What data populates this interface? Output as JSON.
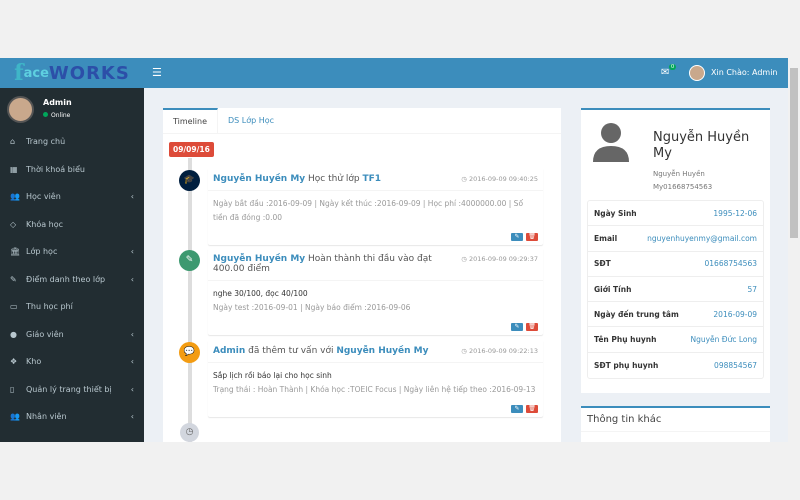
{
  "header": {
    "logo": {
      "f": "f",
      "ace": "ace",
      "works": "WORKS"
    },
    "menu_icon": "bars-icon",
    "mail_badge": "0",
    "greeting": "Xin Chào: Admin"
  },
  "sidebar": {
    "user": {
      "name": "Admin",
      "status": "Online"
    },
    "items": [
      {
        "icon": "home-icon",
        "glyph": "⌂",
        "label": "Trang chủ",
        "chevron": false
      },
      {
        "icon": "calendar-icon",
        "glyph": "▦",
        "label": "Thời khoá biểu",
        "chevron": false
      },
      {
        "icon": "users-icon",
        "glyph": "👥",
        "label": "Học viên",
        "chevron": true
      },
      {
        "icon": "diamond-icon",
        "glyph": "◇",
        "label": "Khóa học",
        "chevron": false
      },
      {
        "icon": "bank-icon",
        "glyph": "🏛",
        "label": "Lớp học",
        "chevron": true
      },
      {
        "icon": "edit-icon",
        "glyph": "✎",
        "label": "Điểm danh theo lớp",
        "chevron": true
      },
      {
        "icon": "money-icon",
        "glyph": "▭",
        "label": "Thu học phí",
        "chevron": false
      },
      {
        "icon": "user-icon",
        "glyph": "●",
        "label": "Giáo viên",
        "chevron": true
      },
      {
        "icon": "cubes-icon",
        "glyph": "❖",
        "label": "Kho",
        "chevron": true
      },
      {
        "icon": "tablet-icon",
        "glyph": "▯",
        "label": "Quản lý trang thiết bị",
        "chevron": true
      },
      {
        "icon": "users-icon",
        "glyph": "👥",
        "label": "Nhân viên",
        "chevron": true
      }
    ]
  },
  "tabs": [
    {
      "label": "Timeline",
      "active": true
    },
    {
      "label": "DS Lớp Học",
      "active": false
    }
  ],
  "timeline": {
    "date": "09/09/16",
    "items": [
      {
        "icon": "graduation-cap-icon",
        "color": "#001f3f",
        "who": "Nguyễn Huyền My",
        "action": " Học thử lớp ",
        "target": "TF1",
        "time": "2016-09-09 09:40:25",
        "text": "",
        "meta": "Ngày bắt đầu :2016-09-09 | Ngày kết thúc :2016-09-09 | Học phí :4000000.00 | Số tiền đã đóng :0.00"
      },
      {
        "icon": "paint-brush-icon",
        "color": "#3d9970",
        "who": "Nguyễn Huyền My",
        "action": " Hoàn thành thi đầu vào đạt 400.00 điểm",
        "target": "",
        "time": "2016-09-09 09:29:37",
        "text": "nghe 30/100, đọc 40/100",
        "meta": "Ngày test :2016-09-01 | Ngày báo điểm :2016-09-06"
      },
      {
        "icon": "comments-icon",
        "color": "#f39c12",
        "who": "Admin",
        "action": " đã thêm tư vấn với ",
        "target": "Nguyễn Huyền My",
        "time": "2016-09-09 09:22:13",
        "text": "Sắp lịch rồi báo lại cho học sinh",
        "meta": "Trạng thái : Hoàn Thành | Khóa học :TOEIC Focus | Ngày liên hệ tiếp theo :2016-09-13"
      }
    ]
  },
  "profile": {
    "name": "Nguyễn Huyền My",
    "subtitle": "Nguyễn Huyền My01668754563",
    "rows": [
      {
        "label": "Ngày Sinh",
        "value": "1995-12-06"
      },
      {
        "label": "Email",
        "value": "nguyenhuyenmy@gmail.com"
      },
      {
        "label": "SĐT",
        "value": "01668754563"
      },
      {
        "label": "Giới Tính",
        "value": "57"
      },
      {
        "label": "Ngày đến trung tâm",
        "value": "2016-09-09"
      },
      {
        "label": "Tên Phụ huynh",
        "value": "Nguyễn Đức Long"
      },
      {
        "label": "SĐT phụ huynh",
        "value": "098854567"
      }
    ]
  },
  "other": {
    "title": "Thông tin khác"
  }
}
